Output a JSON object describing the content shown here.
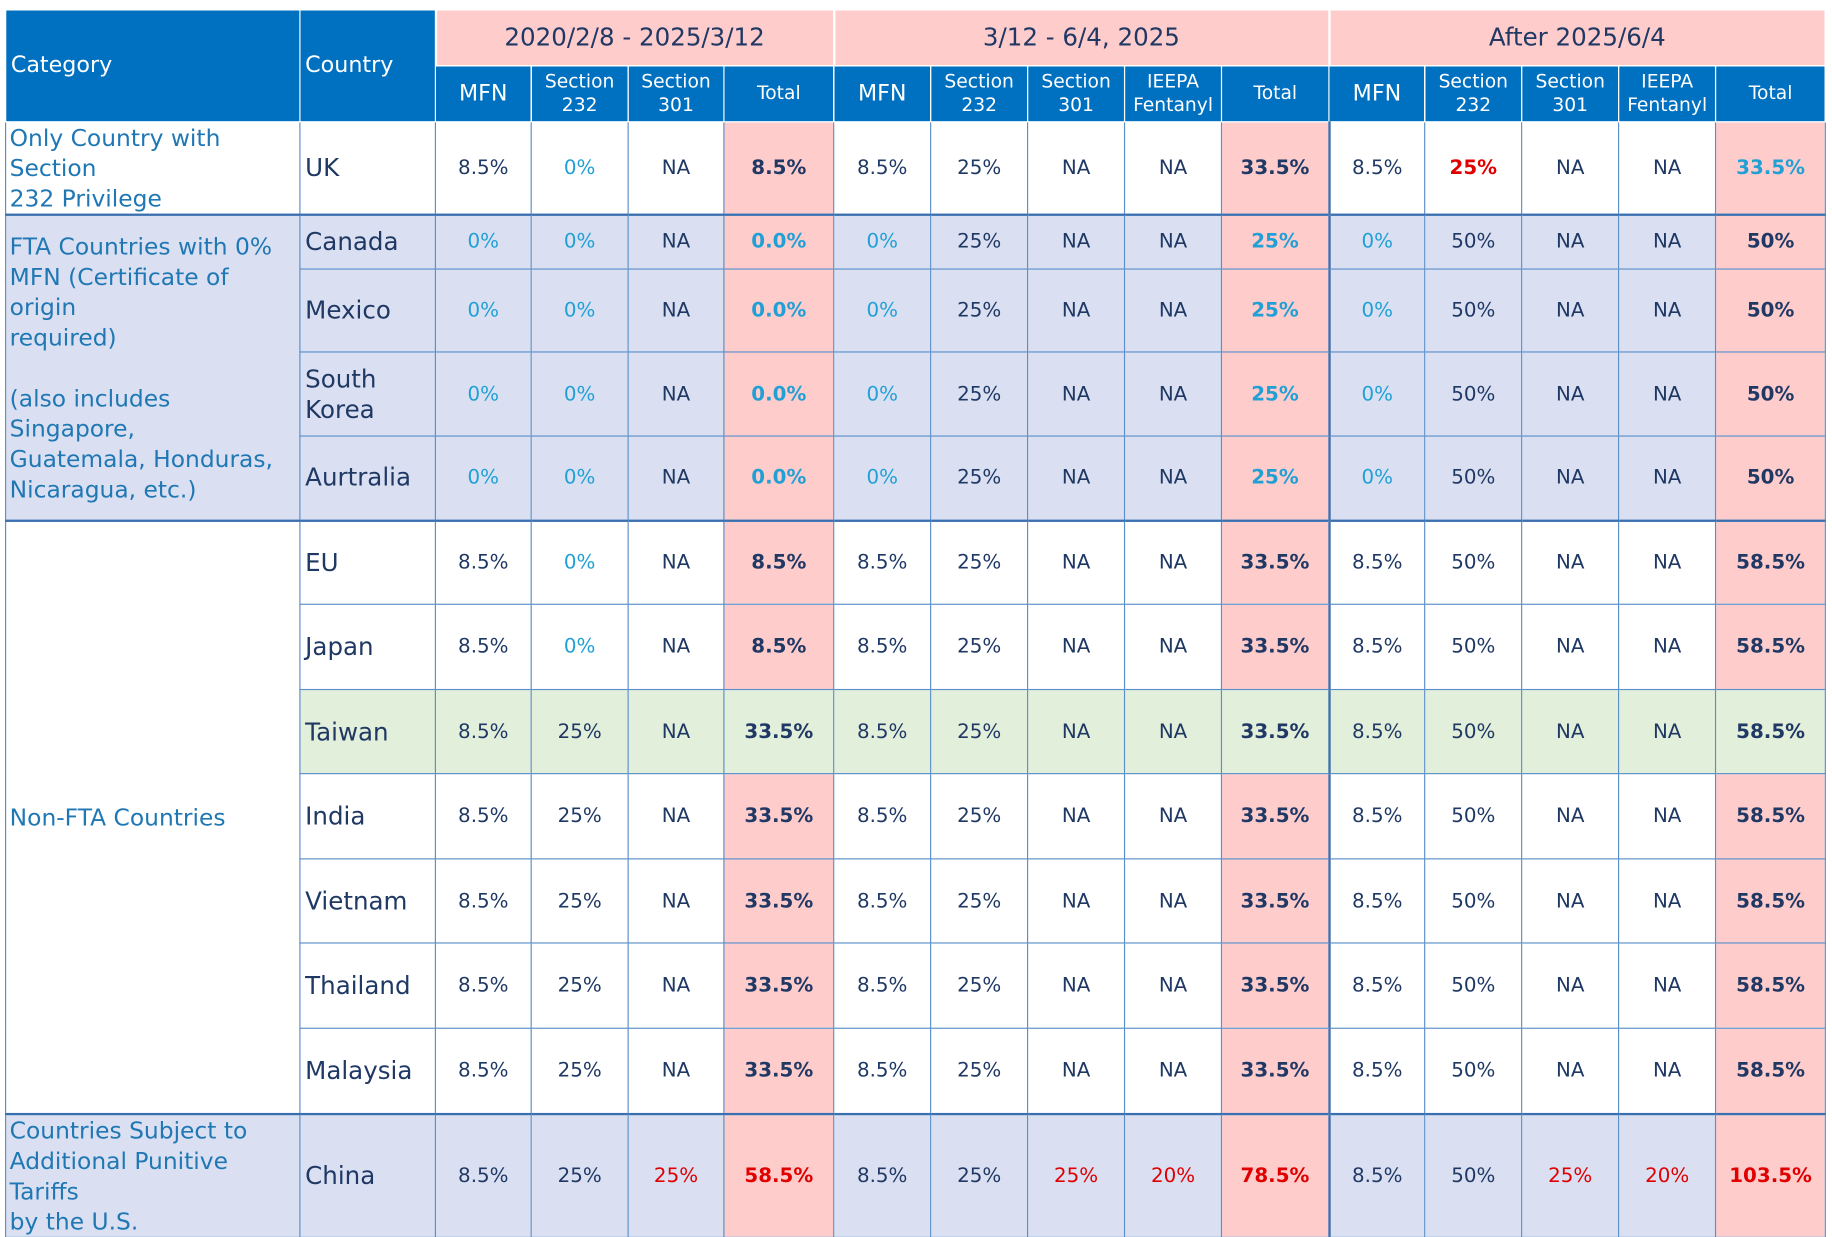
{
  "header": {
    "category": "Category",
    "country": "Country",
    "periods": [
      "2020/2/8 - 2025/3/12",
      "3/12 - 6/4, 2025",
      "After 2025/6/4"
    ],
    "sub": {
      "mfn": "MFN",
      "s232": [
        "Section",
        "232"
      ],
      "s301": [
        "Section",
        "301"
      ],
      "ieepa": [
        "IEEPA",
        "Fentanyl"
      ],
      "total": "Total"
    }
  },
  "categories": {
    "uk_only": [
      "Only Country with Section",
      "232 Privilege"
    ],
    "fta": [
      "FTA Countries with 0%",
      "MFN (Certificate of origin",
      "required)",
      "",
      "(also includes Singapore,",
      "Guatemala, Honduras,",
      "Nicaragua, etc.)"
    ],
    "nonfta": "Non-FTA Countries",
    "china": [
      "Countries Subject to",
      "Additional Punitive Tariffs",
      "by the U.S."
    ]
  },
  "rows": [
    {
      "country": "UK",
      "p1": [
        "8.5%",
        "0%",
        "NA",
        "8.5%"
      ],
      "p2": [
        "8.5%",
        "25%",
        "NA",
        "NA",
        "33.5%"
      ],
      "p3": [
        "8.5%",
        "25%",
        "NA",
        "NA",
        "33.5%"
      ]
    },
    {
      "country": "Canada",
      "p1": [
        "0%",
        "0%",
        "NA",
        "0.0%"
      ],
      "p2": [
        "0%",
        "25%",
        "NA",
        "NA",
        "25%"
      ],
      "p3": [
        "0%",
        "50%",
        "NA",
        "NA",
        "50%"
      ]
    },
    {
      "country": "Mexico",
      "p1": [
        "0%",
        "0%",
        "NA",
        "0.0%"
      ],
      "p2": [
        "0%",
        "25%",
        "NA",
        "NA",
        "25%"
      ],
      "p3": [
        "0%",
        "50%",
        "NA",
        "NA",
        "50%"
      ]
    },
    {
      "country": "South Korea",
      "p1": [
        "0%",
        "0%",
        "NA",
        "0.0%"
      ],
      "p2": [
        "0%",
        "25%",
        "NA",
        "NA",
        "25%"
      ],
      "p3": [
        "0%",
        "50%",
        "NA",
        "NA",
        "50%"
      ]
    },
    {
      "country": "Aurtralia",
      "p1": [
        "0%",
        "0%",
        "NA",
        "0.0%"
      ],
      "p2": [
        "0%",
        "25%",
        "NA",
        "NA",
        "25%"
      ],
      "p3": [
        "0%",
        "50%",
        "NA",
        "NA",
        "50%"
      ]
    },
    {
      "country": "EU",
      "p1": [
        "8.5%",
        "0%",
        "NA",
        "8.5%"
      ],
      "p2": [
        "8.5%",
        "25%",
        "NA",
        "NA",
        "33.5%"
      ],
      "p3": [
        "8.5%",
        "50%",
        "NA",
        "NA",
        "58.5%"
      ]
    },
    {
      "country": "Japan",
      "p1": [
        "8.5%",
        "0%",
        "NA",
        "8.5%"
      ],
      "p2": [
        "8.5%",
        "25%",
        "NA",
        "NA",
        "33.5%"
      ],
      "p3": [
        "8.5%",
        "50%",
        "NA",
        "NA",
        "58.5%"
      ]
    },
    {
      "country": "Taiwan",
      "p1": [
        "8.5%",
        "25%",
        "NA",
        "33.5%"
      ],
      "p2": [
        "8.5%",
        "25%",
        "NA",
        "NA",
        "33.5%"
      ],
      "p3": [
        "8.5%",
        "50%",
        "NA",
        "NA",
        "58.5%"
      ]
    },
    {
      "country": "India",
      "p1": [
        "8.5%",
        "25%",
        "NA",
        "33.5%"
      ],
      "p2": [
        "8.5%",
        "25%",
        "NA",
        "NA",
        "33.5%"
      ],
      "p3": [
        "8.5%",
        "50%",
        "NA",
        "NA",
        "58.5%"
      ]
    },
    {
      "country": "Vietnam",
      "p1": [
        "8.5%",
        "25%",
        "NA",
        "33.5%"
      ],
      "p2": [
        "8.5%",
        "25%",
        "NA",
        "NA",
        "33.5%"
      ],
      "p3": [
        "8.5%",
        "50%",
        "NA",
        "NA",
        "58.5%"
      ]
    },
    {
      "country": "Thailand",
      "p1": [
        "8.5%",
        "25%",
        "NA",
        "33.5%"
      ],
      "p2": [
        "8.5%",
        "25%",
        "NA",
        "NA",
        "33.5%"
      ],
      "p3": [
        "8.5%",
        "50%",
        "NA",
        "NA",
        "58.5%"
      ]
    },
    {
      "country": "Malaysia",
      "p1": [
        "8.5%",
        "25%",
        "NA",
        "33.5%"
      ],
      "p2": [
        "8.5%",
        "25%",
        "NA",
        "NA",
        "33.5%"
      ],
      "p3": [
        "8.5%",
        "50%",
        "NA",
        "NA",
        "58.5%"
      ]
    },
    {
      "country": "China",
      "p1": [
        "8.5%",
        "25%",
        "25%",
        "58.5%"
      ],
      "p2": [
        "8.5%",
        "25%",
        "25%",
        "20%",
        "78.5%"
      ],
      "p3": [
        "8.5%",
        "50%",
        "25%",
        "20%",
        "103.5%"
      ]
    }
  ],
  "colors": {
    "header_blue": "#0070c0",
    "period_pink": "#ffcccc",
    "lavender": "#dae0f2",
    "green": "#e2efda",
    "cyan_text": "#21a0d6",
    "red_text": "#e00000",
    "navy_text": "#1f3864"
  }
}
